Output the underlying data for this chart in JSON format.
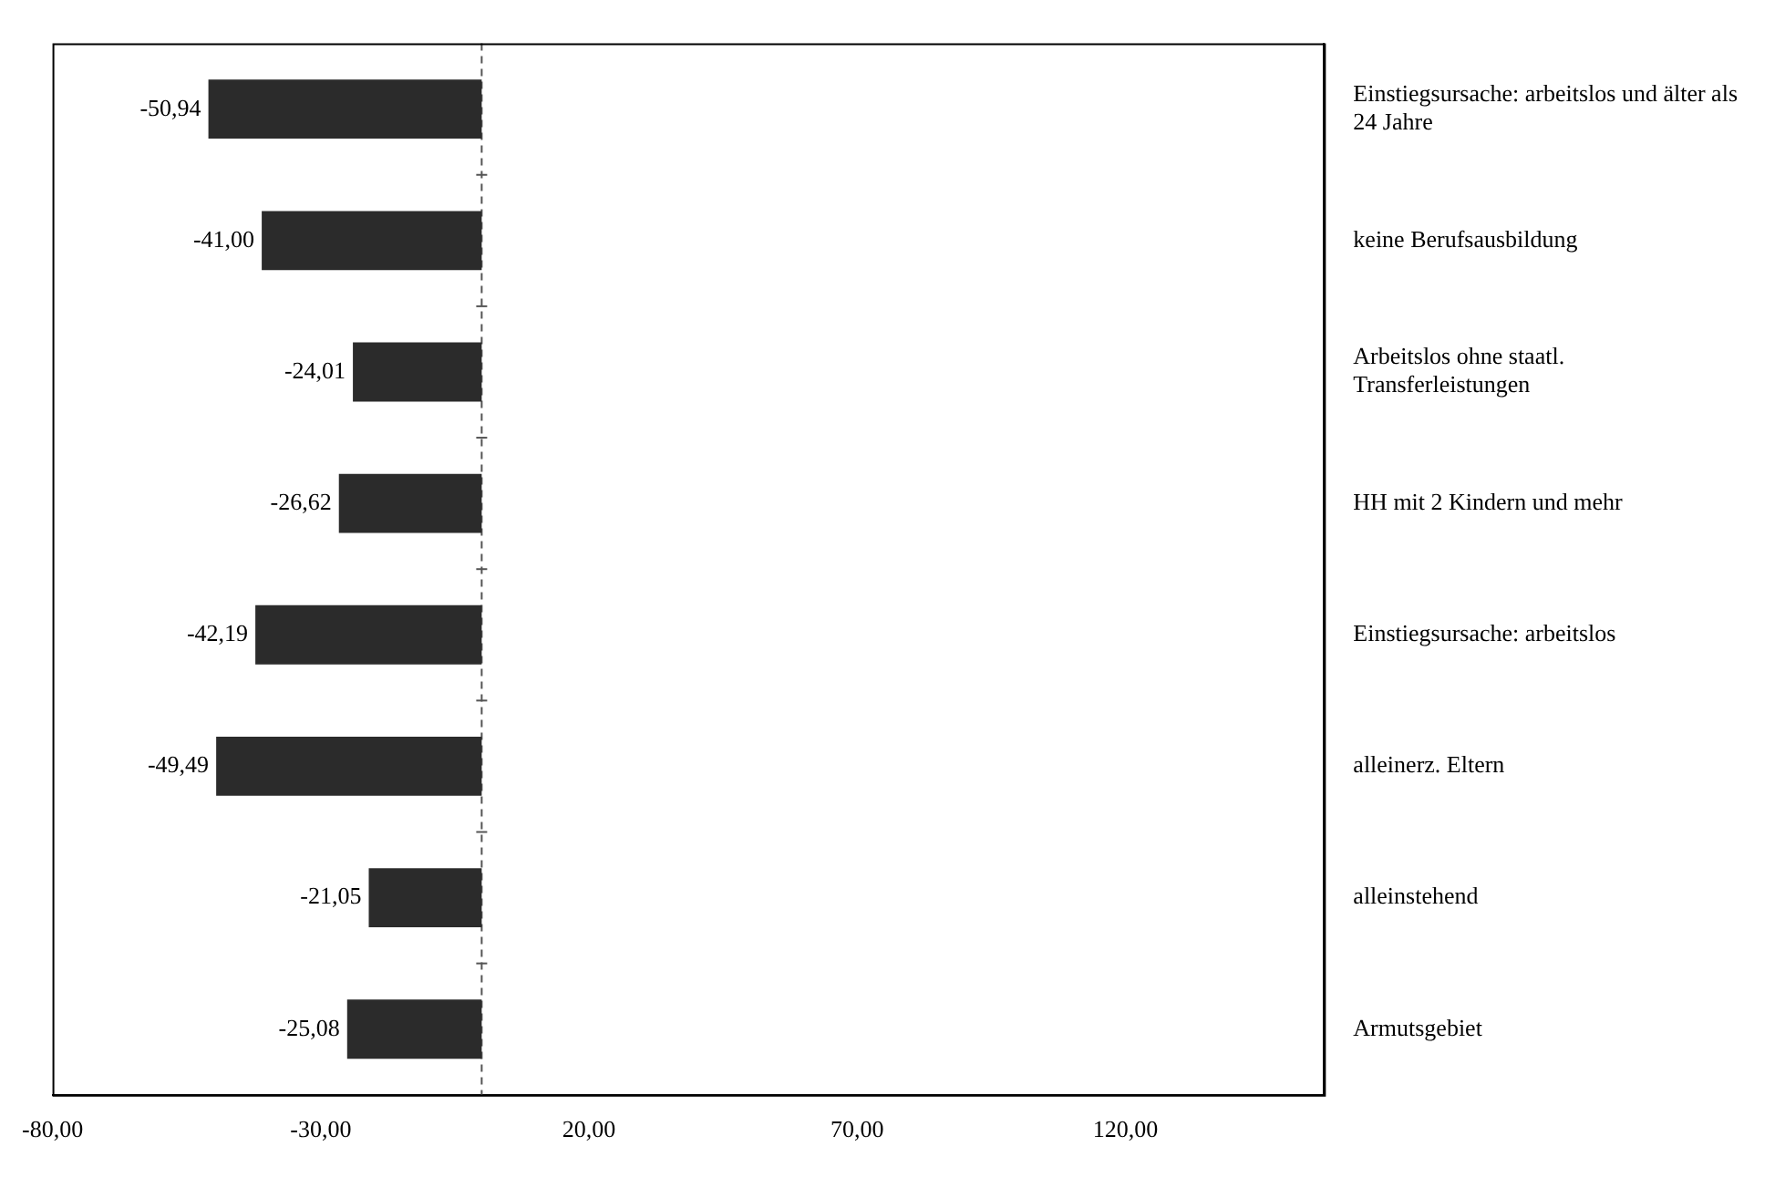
{
  "chart_data": {
    "type": "bar",
    "orientation": "horizontal",
    "categories": [
      "Einstiegsursache: arbeitslos und älter als 24 Jahre",
      "keine Berufsausbildung",
      "Arbeitslos ohne staatl. Transferleistungen",
      "HH mit 2 Kindern und mehr",
      "Einstiegsursache: arbeitslos",
      "alleinerz. Eltern",
      "alleinstehend",
      "Armutsgebiet"
    ],
    "values": [
      -50.94,
      -41.0,
      -24.01,
      -26.62,
      -42.19,
      -49.49,
      -21.05,
      -25.08
    ],
    "value_labels": [
      "-50,94",
      "-41,00",
      "-24,01",
      "-26,62",
      "-42,19",
      "-49,49",
      "-21,05",
      "-25,08"
    ],
    "color": "#2b2b2b",
    "xlim": [
      -80,
      157
    ],
    "xticks": [
      {
        "value": -80,
        "label": "-80,00"
      },
      {
        "value": -30,
        "label": "-30,00"
      },
      {
        "value": 20,
        "label": "20,00"
      },
      {
        "value": 70,
        "label": "70,00"
      },
      {
        "value": 120,
        "label": "120,00"
      }
    ],
    "ref_lines": [
      {
        "axis": "x",
        "value": 0,
        "line_style": "dashed",
        "color": "#555555"
      }
    ],
    "grid": false,
    "legend": false
  }
}
